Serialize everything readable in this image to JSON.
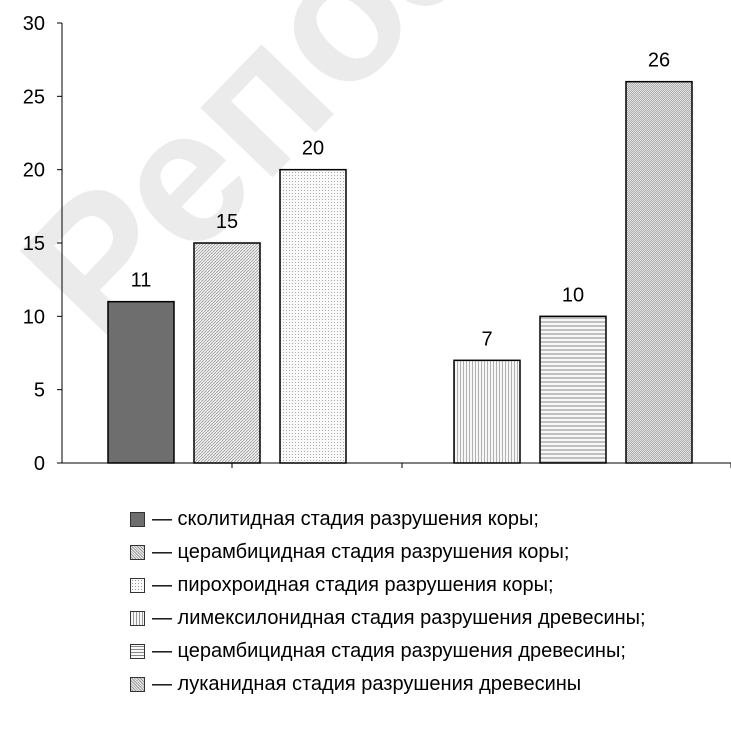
{
  "chart_data": {
    "type": "bar",
    "ylim": [
      0,
      30
    ],
    "yticks": [
      0,
      5,
      10,
      15,
      20,
      25,
      30
    ],
    "groups": [
      {
        "bars": [
          {
            "series": 0,
            "value": 11
          },
          {
            "series": 1,
            "value": 15
          },
          {
            "series": 2,
            "value": 20
          }
        ]
      },
      {
        "bars": [
          {
            "series": 3,
            "value": 7
          },
          {
            "series": 4,
            "value": 10
          },
          {
            "series": 5,
            "value": 26
          }
        ]
      }
    ],
    "series": [
      {
        "name": "— сколитидная стадия разрушения коры;",
        "pattern": "solid"
      },
      {
        "name": "— церамбицидная стадия разрушения коры;",
        "pattern": "diagonal"
      },
      {
        "name": "— пирохроидная стадия разрушения коры;",
        "pattern": "dots"
      },
      {
        "name": "— лимексилонидная стадия разрушения древесины;",
        "pattern": "vertical"
      },
      {
        "name": "— церамбицидная стадия разрушения древесины;",
        "pattern": "horizontal"
      },
      {
        "name": "— луканидная стадия разрушения древесины",
        "pattern": "dense-diagonal"
      }
    ],
    "colors": {
      "solid": "#6e6e6e",
      "axis": "#000000"
    },
    "legend_position": "bottom"
  },
  "watermark": "Репозиторий"
}
